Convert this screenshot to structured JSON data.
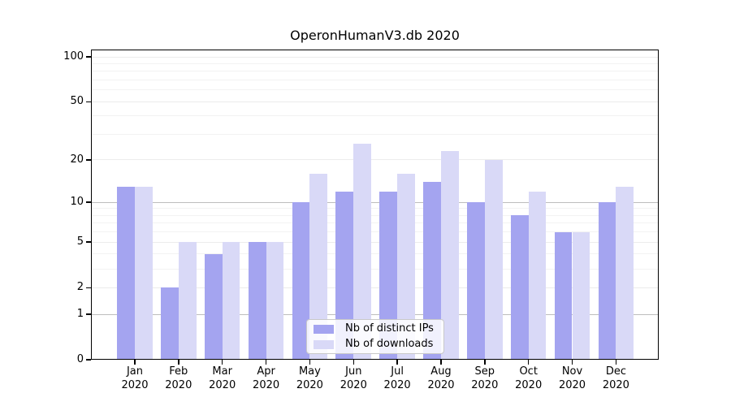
{
  "chart_data": {
    "type": "bar",
    "title": "OperonHumanV3.db 2020",
    "y_scale": "log-like (position proportional to log10(1+y))",
    "categories": [
      "Jan",
      "Feb",
      "Mar",
      "Apr",
      "May",
      "Jun",
      "Jul",
      "Aug",
      "Sep",
      "Oct",
      "Nov",
      "Dec"
    ],
    "x_tick_year": "2020",
    "series": [
      {
        "name": "Nb of distinct IPs",
        "color": "#a4a4f0",
        "values": [
          13,
          2,
          4,
          5,
          10,
          12,
          12,
          14,
          10,
          8,
          6,
          10
        ]
      },
      {
        "name": "Nb of downloads",
        "color": "#d9d9f7",
        "values": [
          13,
          5,
          5,
          5,
          16,
          26,
          16,
          23,
          20,
          12,
          6,
          13
        ]
      }
    ],
    "ylim": [
      0,
      100
    ],
    "yticks": [
      0,
      1,
      2,
      5,
      10,
      20,
      50,
      100
    ],
    "minor_gridlines": [
      3,
      4,
      6,
      7,
      8,
      9,
      30,
      40,
      60,
      70,
      80,
      90
    ],
    "emphasized_gridlines": [
      1,
      10
    ],
    "grid": true,
    "legend_position": "bottom-center",
    "colors": {
      "grid_major_dark": "#bdbdbd",
      "grid_light": "#ececec",
      "grid_minor": "#f2f2f2",
      "axis": "#000000",
      "background": "#ffffff"
    }
  }
}
